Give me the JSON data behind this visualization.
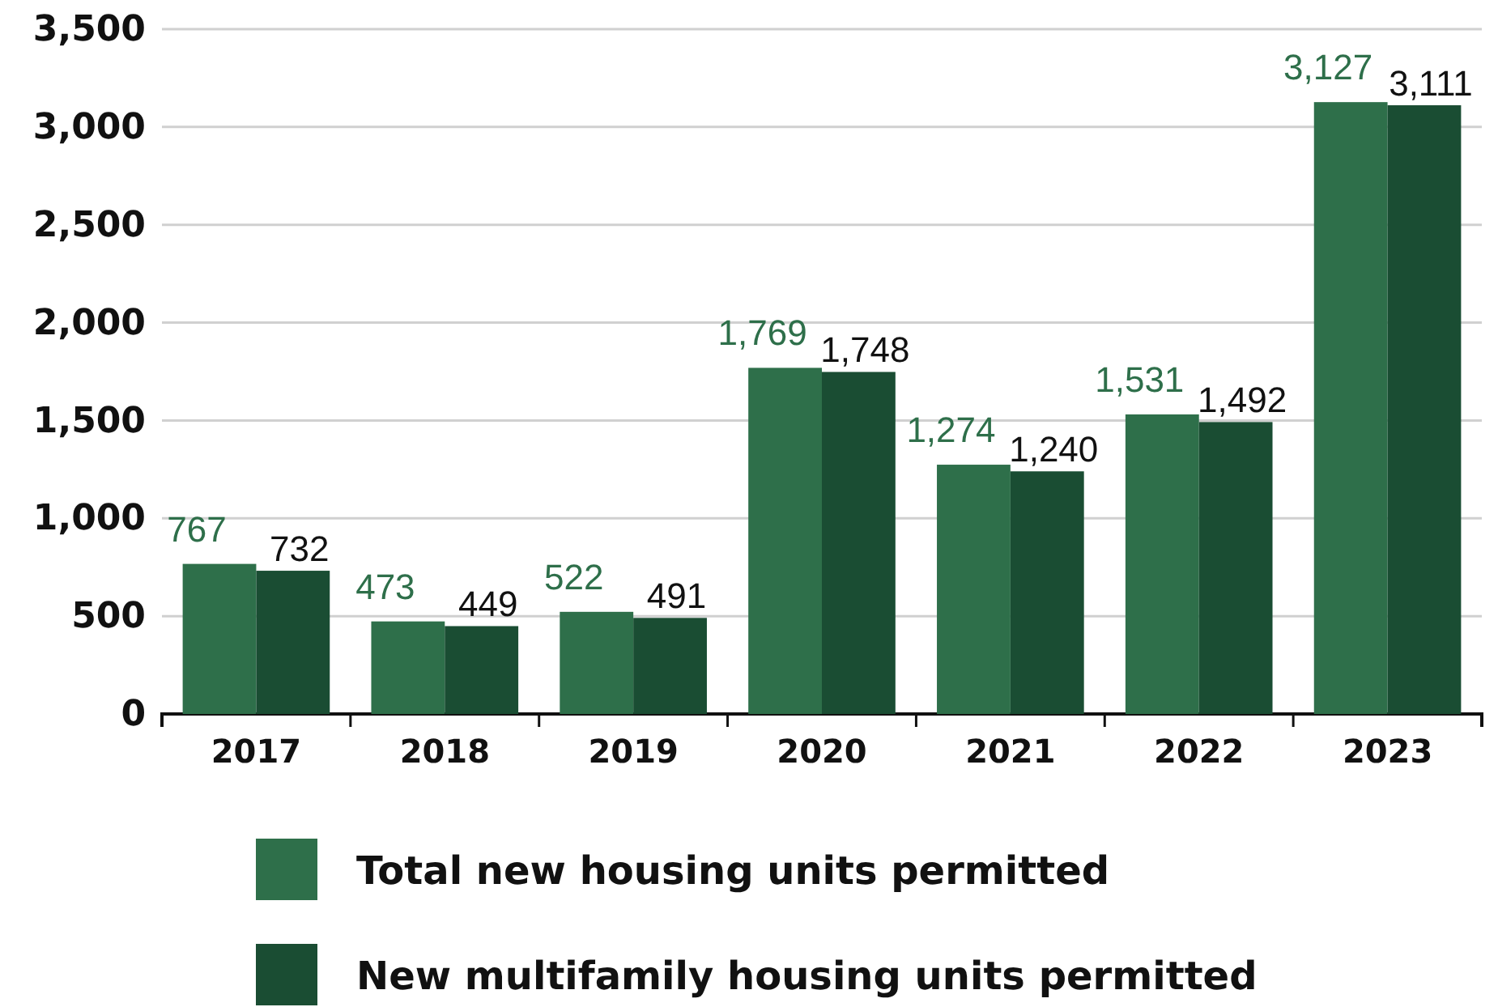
{
  "chart_data": {
    "type": "bar",
    "categories": [
      "2017",
      "2018",
      "2019",
      "2020",
      "2021",
      "2022",
      "2023"
    ],
    "series": [
      {
        "name": "Total new housing units permitted",
        "color": "#2e6f4a",
        "values": [
          767,
          473,
          522,
          1769,
          1274,
          1531,
          3127
        ],
        "value_labels": [
          "767",
          "473",
          "522",
          "1,769",
          "1,274",
          "1,531",
          "3,127"
        ]
      },
      {
        "name": "New multifamily housing units permitted",
        "color": "#1a4d33",
        "values": [
          732,
          449,
          491,
          1748,
          1240,
          1492,
          3111
        ],
        "value_labels": [
          "732",
          "449",
          "491",
          "1,748",
          "1,240",
          "1,492",
          "3,111"
        ]
      }
    ],
    "ylim": [
      0,
      3500
    ],
    "yticks": [
      {
        "value": 0,
        "label": "0"
      },
      {
        "value": 500,
        "label": "500"
      },
      {
        "value": 1000,
        "label": "1,000"
      },
      {
        "value": 1500,
        "label": "1,500"
      },
      {
        "value": 2000,
        "label": "2,000"
      },
      {
        "value": 2500,
        "label": "2,500"
      },
      {
        "value": 3000,
        "label": "3,000"
      },
      {
        "value": 3500,
        "label": "3,500"
      }
    ],
    "grid": "y",
    "legend": "bottom"
  }
}
